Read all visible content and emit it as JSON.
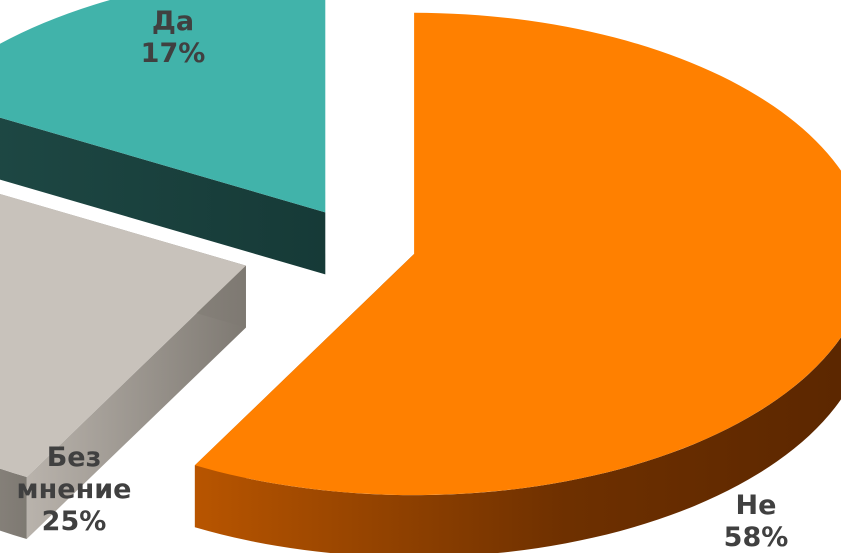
{
  "chart_data": {
    "type": "pie",
    "variant": "3d-exploded",
    "slices": [
      {
        "label": "Не",
        "value": 58,
        "value_label": "58%",
        "color": "#FF8000"
      },
      {
        "label": "Без мнение",
        "label_lines": [
          "Без",
          "мнение"
        ],
        "value": 25,
        "value_label": "25%",
        "color": "#C8C2BB"
      },
      {
        "label": "Да",
        "value": 17,
        "value_label": "17%",
        "color": "#41B3AA"
      }
    ],
    "legend": "none",
    "title": ""
  }
}
